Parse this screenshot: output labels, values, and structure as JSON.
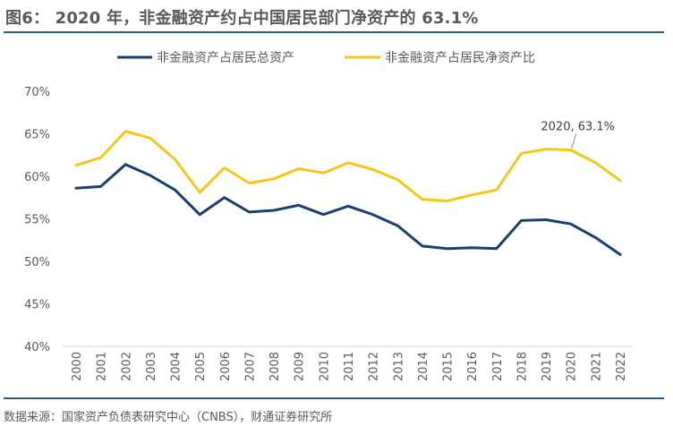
{
  "title": "图6： 2020 年，非金融资产约占中国居民部门净资产的 63.1%",
  "source": "数据来源：国家资产负债表研究中心（CNBS），财通证券研究所",
  "colors": {
    "series_total_assets": "#1a3f73",
    "series_net_assets": "#f2c81a",
    "axis": "#d9d9d9",
    "text": "#595959",
    "rule": "#2e5e7e"
  },
  "chart_data": {
    "type": "line",
    "title": "2020 年，非金融资产约占中国居民部门净资产的 63.1%",
    "xlabel": "",
    "ylabel": "",
    "x": [
      "2000",
      "2001",
      "2002",
      "2003",
      "2004",
      "2005",
      "2006",
      "2007",
      "2008",
      "2009",
      "2010",
      "2011",
      "2012",
      "2013",
      "2014",
      "2015",
      "2016",
      "2017",
      "2018",
      "2019",
      "2020",
      "2021",
      "2022"
    ],
    "ylim": [
      40,
      70
    ],
    "yticks": [
      40,
      45,
      50,
      55,
      60,
      65,
      70
    ],
    "ytick_labels": [
      "40%",
      "45%",
      "50%",
      "55%",
      "60%",
      "65%",
      "70%"
    ],
    "grid": false,
    "legend_position": "top-center",
    "series": [
      {
        "name": "非金融资产占居民总资产",
        "color": "#1a3f73",
        "values": [
          58.6,
          58.8,
          61.4,
          60.1,
          58.4,
          55.5,
          57.5,
          55.8,
          56.0,
          56.6,
          55.5,
          56.5,
          55.5,
          54.2,
          51.8,
          51.5,
          51.6,
          51.5,
          54.8,
          54.9,
          54.4,
          52.8,
          50.8
        ]
      },
      {
        "name": "非金融资产占居民净资产比",
        "color": "#f2c81a",
        "values": [
          61.3,
          62.2,
          65.3,
          64.5,
          62.0,
          58.1,
          61.0,
          59.2,
          59.7,
          60.9,
          60.4,
          61.6,
          60.8,
          59.6,
          57.3,
          57.1,
          57.8,
          58.4,
          62.7,
          63.2,
          63.1,
          61.6,
          59.5
        ]
      }
    ],
    "annotations": [
      {
        "series": 1,
        "x": "2020",
        "value": 63.1,
        "text": "2020, 63.1%"
      }
    ]
  }
}
